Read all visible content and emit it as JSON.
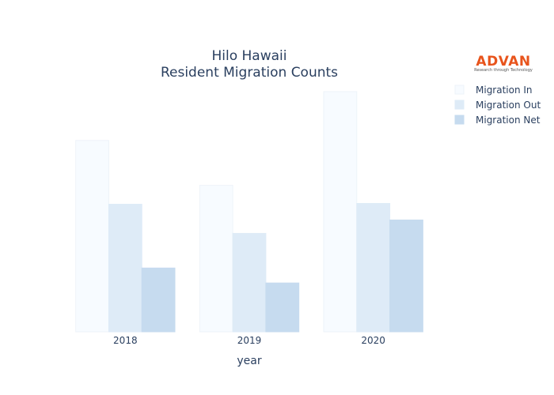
{
  "logo": {
    "wordmark": "ADVAN",
    "tagline": "Research through Technology",
    "color": "#e8541c"
  },
  "chart_data": {
    "type": "bar",
    "title": [
      "Hilo Hawaii",
      "Resident Migration Counts"
    ],
    "xlabel": "year",
    "ylabel": "",
    "categories": [
      "2018",
      "2019",
      "2020"
    ],
    "series": [
      {
        "name": "Migration In",
        "values": [
          243,
          186,
          305
        ],
        "color": "#f7fbff",
        "stroke": "#eef3f9"
      },
      {
        "name": "Migration Out",
        "values": [
          162,
          125,
          163
        ],
        "color": "#deebf7",
        "stroke": "#deebf7"
      },
      {
        "name": "Migration Net",
        "values": [
          81,
          62,
          142
        ],
        "color": "#c6dbef",
        "stroke": "#c6dbef"
      }
    ],
    "ylim": [
      0,
      305
    ],
    "grid": false,
    "show_y_axis": false,
    "legend_position": "top-right"
  }
}
